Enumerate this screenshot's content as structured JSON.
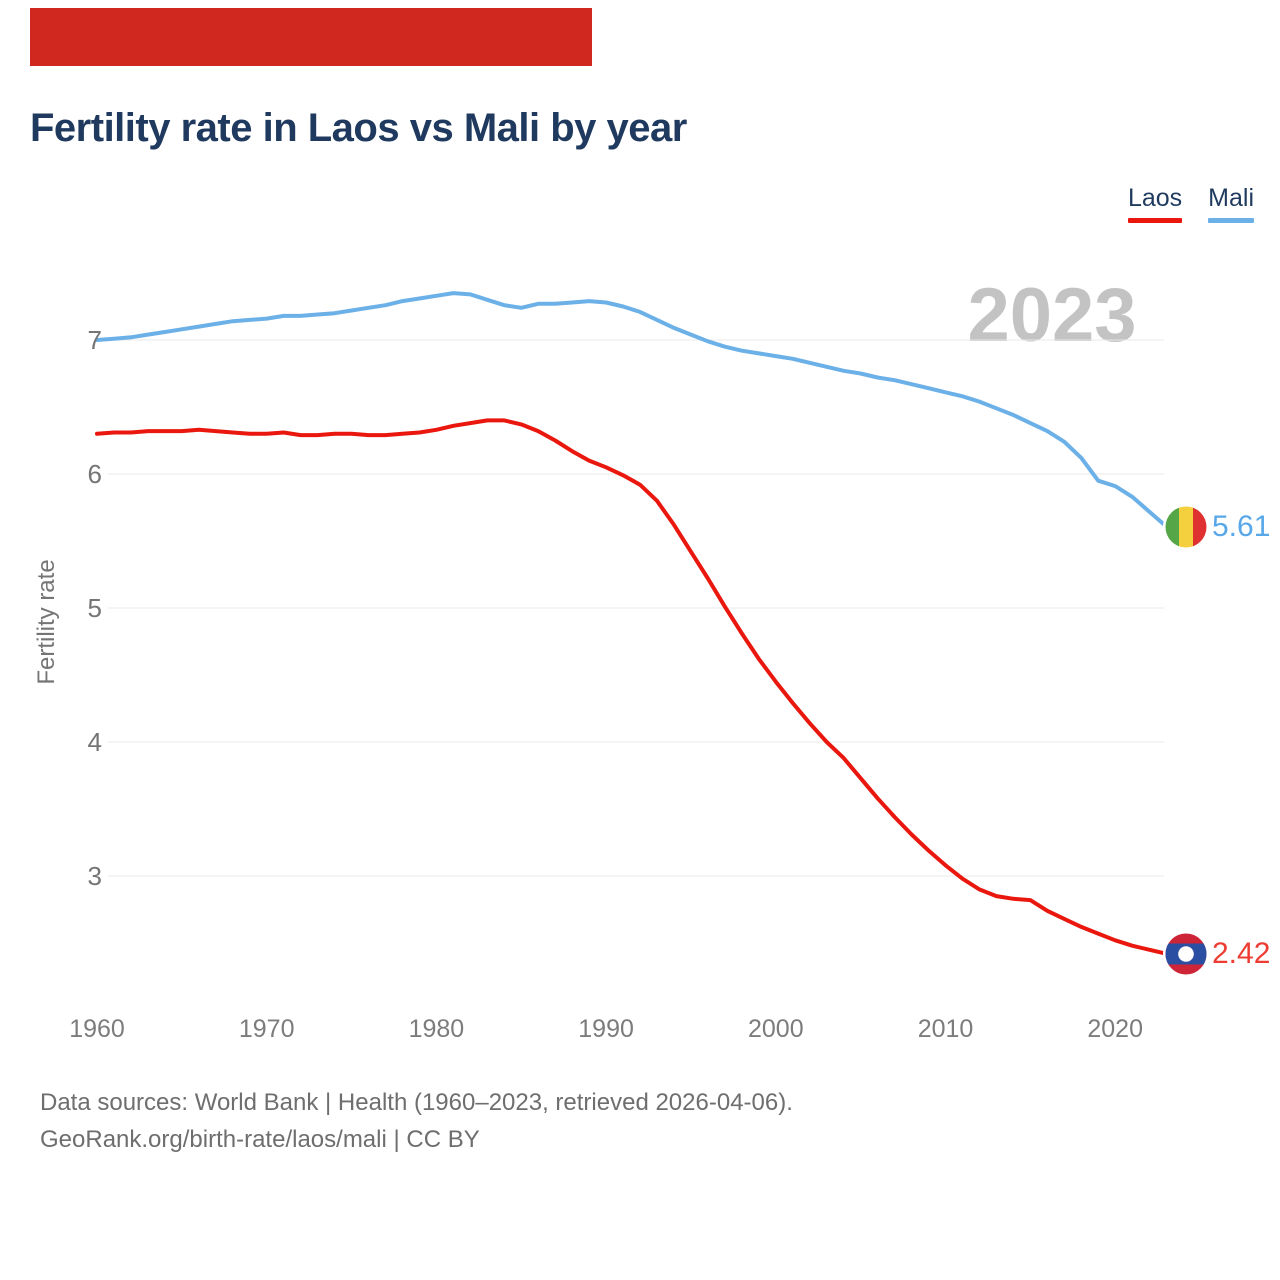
{
  "banner": {
    "color": "#d0281e"
  },
  "title": "Fertility rate in Laos vs Mali by year",
  "legend": {
    "items": [
      {
        "label": "Laos",
        "color": "#e9170d"
      },
      {
        "label": "Mali",
        "color": "#6cb0e8"
      }
    ]
  },
  "watermark": "2023",
  "end_labels": {
    "mali": {
      "value": "5.61",
      "color": "#58a7e8"
    },
    "laos": {
      "value": "2.42",
      "color": "#ed3d33"
    }
  },
  "footer": {
    "line1": "Data sources: World Bank | Health (1960–2023, retrieved 2026-04-06).",
    "line2": "GeoRank.org/birth-rate/laos/mali | CC BY"
  },
  "chart_data": {
    "type": "line",
    "title": "Fertility rate in Laos vs Mali by year",
    "ylabel": "Fertility rate",
    "xlabel": "",
    "grid": true,
    "legend_position": "top-right",
    "ylim": [
      2.2,
      7.6
    ],
    "y_ticks": [
      7,
      6,
      5,
      4,
      3
    ],
    "x_ticks": [
      1960,
      1970,
      1980,
      1990,
      2000,
      2010,
      2020
    ],
    "x": [
      1960,
      1961,
      1962,
      1963,
      1964,
      1965,
      1966,
      1967,
      1968,
      1969,
      1970,
      1971,
      1972,
      1973,
      1974,
      1975,
      1976,
      1977,
      1978,
      1979,
      1980,
      1981,
      1982,
      1983,
      1984,
      1985,
      1986,
      1987,
      1988,
      1989,
      1990,
      1991,
      1992,
      1993,
      1994,
      1995,
      1996,
      1997,
      1998,
      1999,
      2000,
      2001,
      2002,
      2003,
      2004,
      2005,
      2006,
      2007,
      2008,
      2009,
      2010,
      2011,
      2012,
      2013,
      2014,
      2015,
      2016,
      2017,
      2018,
      2019,
      2020,
      2021,
      2022,
      2023
    ],
    "series": [
      {
        "name": "Laos",
        "color": "#e9170d",
        "end_value": 2.42,
        "values": [
          6.3,
          6.31,
          6.31,
          6.32,
          6.32,
          6.32,
          6.33,
          6.32,
          6.31,
          6.3,
          6.3,
          6.31,
          6.29,
          6.29,
          6.3,
          6.3,
          6.29,
          6.29,
          6.3,
          6.31,
          6.33,
          6.36,
          6.38,
          6.4,
          6.4,
          6.37,
          6.32,
          6.25,
          6.17,
          6.1,
          6.05,
          5.99,
          5.92,
          5.8,
          5.62,
          5.42,
          5.22,
          5.01,
          4.81,
          4.62,
          4.45,
          4.29,
          4.14,
          4.0,
          3.88,
          3.73,
          3.58,
          3.44,
          3.31,
          3.19,
          3.08,
          2.98,
          2.9,
          2.85,
          2.83,
          2.82,
          2.74,
          2.68,
          2.62,
          2.57,
          2.52,
          2.48,
          2.45,
          2.42
        ]
      },
      {
        "name": "Mali",
        "color": "#6cb0e8",
        "end_value": 5.61,
        "values": [
          7.0,
          7.01,
          7.02,
          7.04,
          7.06,
          7.08,
          7.1,
          7.12,
          7.14,
          7.15,
          7.16,
          7.18,
          7.18,
          7.19,
          7.2,
          7.22,
          7.24,
          7.26,
          7.29,
          7.31,
          7.33,
          7.35,
          7.34,
          7.3,
          7.26,
          7.24,
          7.27,
          7.27,
          7.28,
          7.29,
          7.28,
          7.25,
          7.21,
          7.15,
          7.09,
          7.04,
          6.99,
          6.95,
          6.92,
          6.9,
          6.88,
          6.86,
          6.83,
          6.8,
          6.77,
          6.75,
          6.72,
          6.7,
          6.67,
          6.64,
          6.61,
          6.58,
          6.54,
          6.49,
          6.44,
          6.38,
          6.32,
          6.24,
          6.12,
          5.95,
          5.91,
          5.83,
          5.72,
          5.61
        ]
      }
    ]
  }
}
